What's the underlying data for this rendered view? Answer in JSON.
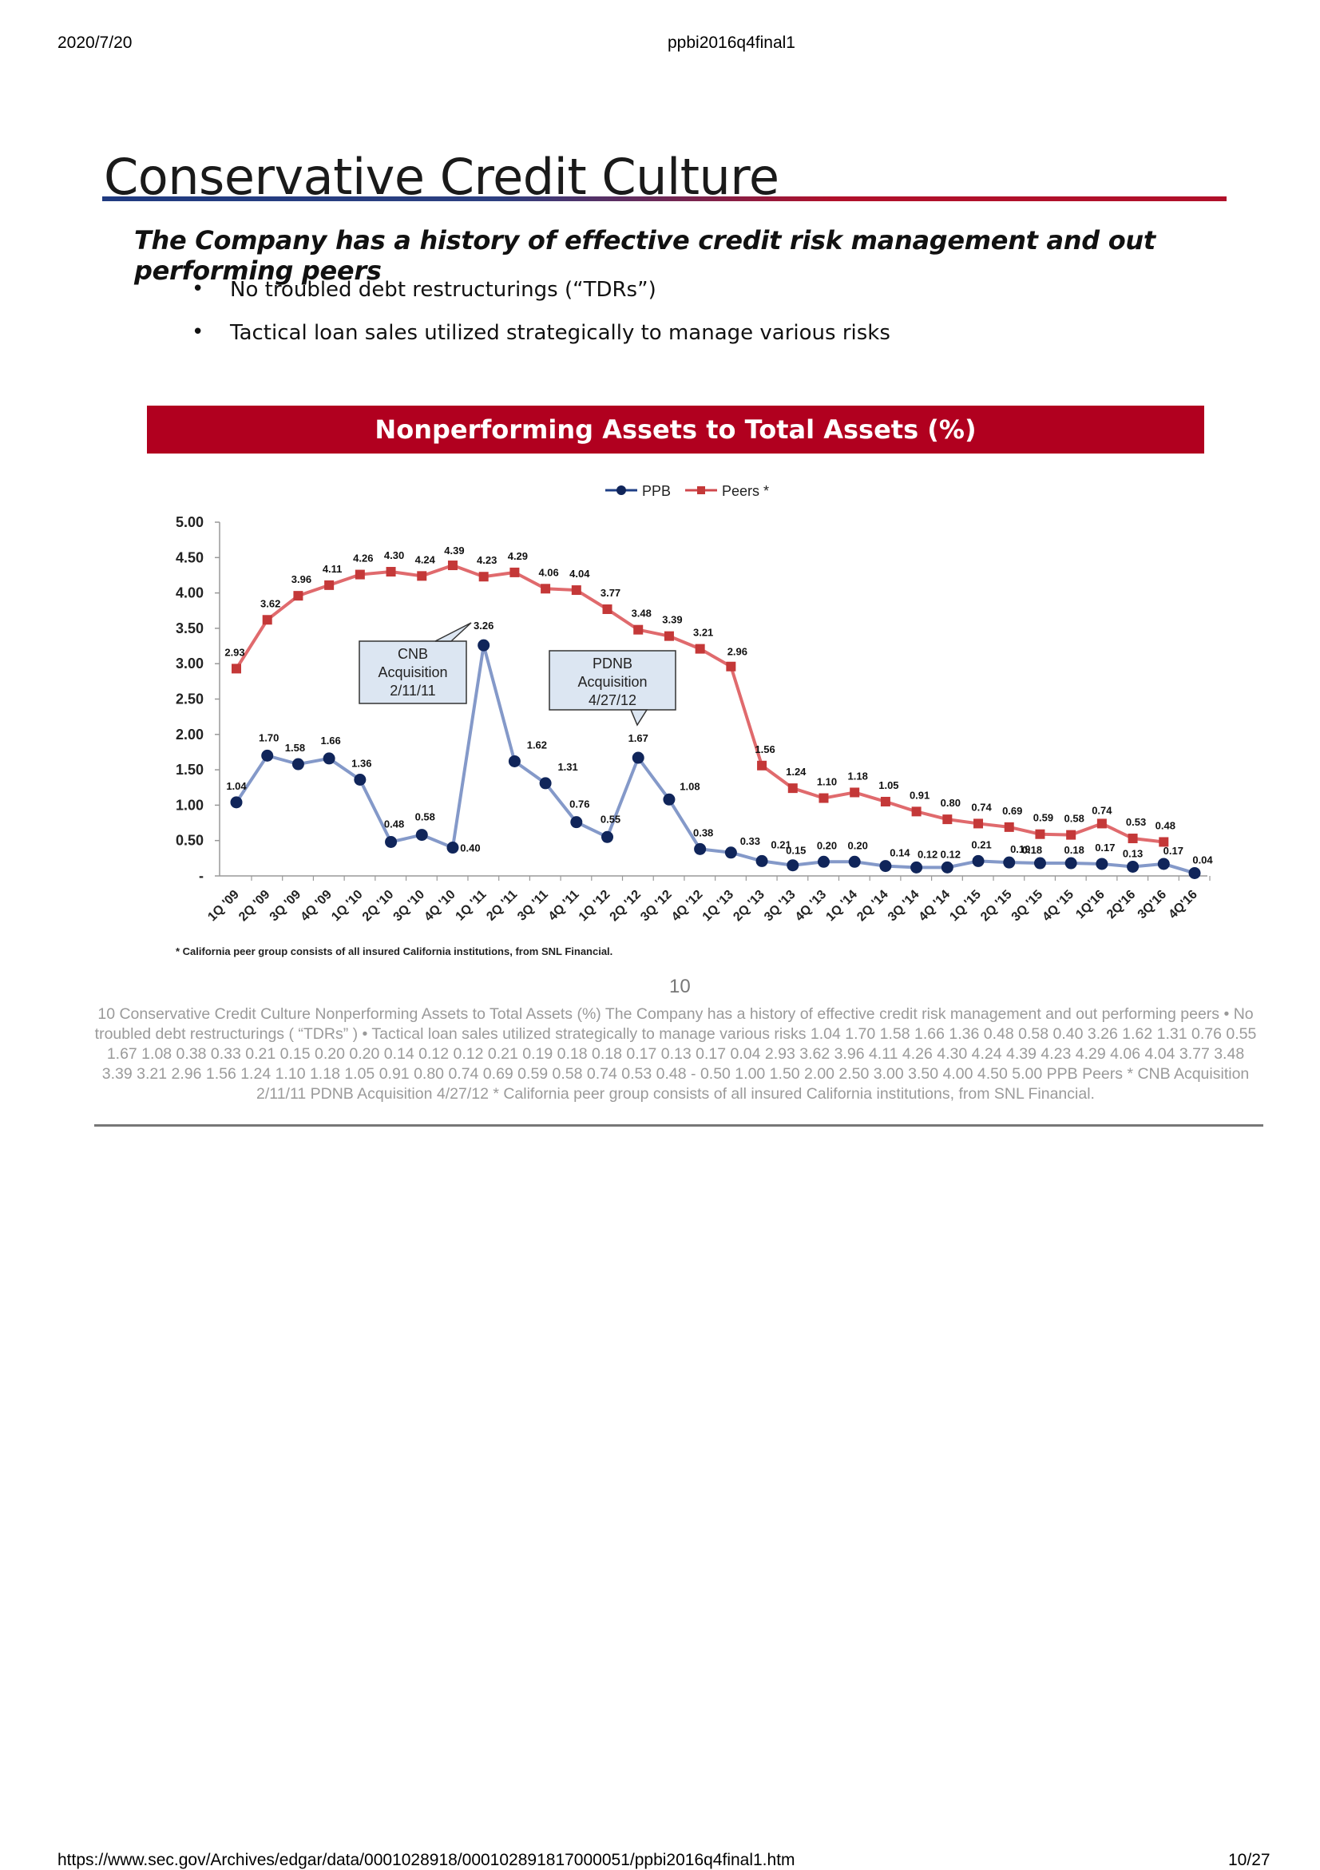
{
  "browser": {
    "date": "2020/7/20",
    "doc_title": "ppbi2016q4final1",
    "url": "https://www.sec.gov/Archives/edgar/data/0001028918/000102891817000051/ppbi2016q4final1.htm",
    "page_counter": "10/27"
  },
  "slide": {
    "title": "Conservative Credit Culture",
    "subtitle": "The Company has a history of effective credit risk management and out performing peers",
    "bullets": [
      "No troubled debt restructurings (“TDRs”)",
      "Tactical loan sales utilized strategically to manage various risks"
    ],
    "footnote": "* California peer group consists of all insured California institutions, from SNL Financial.",
    "page_number": "10",
    "alt_text": "10 Conservative Credit Culture Nonperforming Assets to Total Assets (%) The Company has a history of effective credit risk management and out performing peers • No troubled debt restructurings ( “TDRs” ) • Tactical loan sales utilized strategically to manage various risks 1.04 1.70 1.58 1.66 1.36 0.48 0.58 0.40 3.26 1.62 1.31 0.76 0.55 1.67 1.08 0.38 0.33 0.21 0.15 0.20 0.20 0.14 0.12 0.12 0.21 0.19 0.18 0.18 0.17 0.13 0.17 0.04 2.93 3.62 3.96 4.11 4.26 4.30 4.24 4.39 4.23 4.29 4.06 4.04 3.77 3.48 3.39 3.21 2.96 1.56 1.24 1.10 1.18 1.05 0.91 0.80 0.74 0.69 0.59 0.58 0.74 0.53 0.48 - 0.50 1.00 1.50 2.00 2.50 3.00 3.50 4.00 4.50 5.00 PPB Peers * CNB Acquisition 2/11/11 PDNB Acquisition 4/27/12 * California peer group consists of all insured California institutions, from SNL Financial."
  },
  "chart_data": {
    "type": "line",
    "title": "Nonperforming Assets to Total Assets (%)",
    "categories": [
      "1Q '09",
      "2Q '09",
      "3Q '09",
      "4Q '09",
      "1Q '10",
      "2Q '10",
      "3Q '10",
      "4Q '10",
      "1Q '11",
      "2Q '11",
      "3Q '11",
      "4Q '11",
      "1Q '12",
      "2Q '12",
      "3Q '12",
      "4Q '12",
      "1Q '13",
      "2Q '13",
      "3Q '13",
      "4Q '13",
      "1Q '14",
      "2Q '14",
      "3Q '14",
      "4Q '14",
      "1Q '15",
      "2Q '15",
      "3Q '15",
      "4Q '15",
      "1Q'16",
      "2Q'16",
      "3Q'16",
      "4Q'16"
    ],
    "series": [
      {
        "name": "PPB",
        "color": "#1f3f86",
        "marker": "circle",
        "values": [
          1.04,
          1.7,
          1.58,
          1.66,
          1.36,
          0.48,
          0.58,
          0.4,
          3.26,
          1.62,
          1.31,
          0.76,
          0.55,
          1.67,
          1.08,
          0.38,
          0.33,
          0.21,
          0.15,
          0.2,
          0.2,
          0.14,
          0.12,
          0.12,
          0.21,
          0.19,
          0.18,
          0.18,
          0.17,
          0.13,
          0.17,
          0.04
        ]
      },
      {
        "name": "Peers *",
        "color": "#d0474d",
        "marker": "square",
        "values": [
          2.93,
          3.62,
          3.96,
          4.11,
          4.26,
          4.3,
          4.24,
          4.39,
          4.23,
          4.29,
          4.06,
          4.04,
          3.77,
          3.48,
          3.39,
          3.21,
          2.96,
          1.56,
          1.24,
          1.1,
          1.18,
          1.05,
          0.91,
          0.8,
          0.74,
          0.69,
          0.59,
          0.58,
          0.74,
          0.53,
          0.48,
          null
        ]
      }
    ],
    "ylim": [
      0,
      5
    ],
    "yticks": [
      "-",
      "0.50",
      "1.00",
      "1.50",
      "2.00",
      "2.50",
      "3.00",
      "3.50",
      "4.00",
      "4.50",
      "5.00"
    ],
    "legend_position": "top-center",
    "annotations": [
      {
        "lines": [
          "CNB",
          "Acquisition",
          "2/11/11"
        ],
        "target_index": 8
      },
      {
        "lines": [
          "PDNB",
          "Acquisition",
          "4/27/12"
        ],
        "target_index": 13
      }
    ]
  }
}
